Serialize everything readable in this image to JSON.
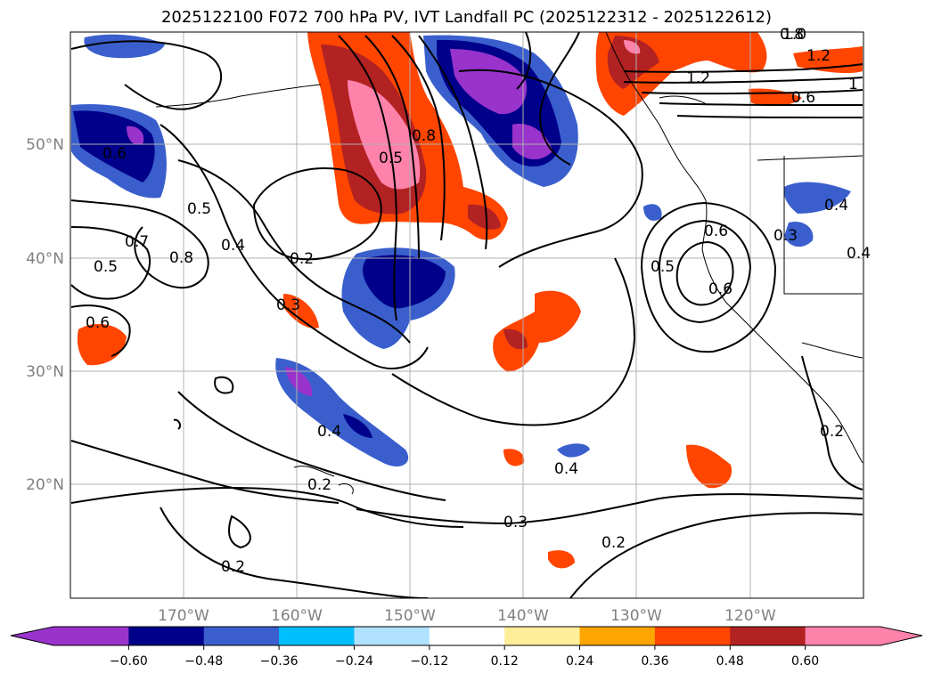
{
  "title": "2025122100 F072 700 hPa PV, IVT Landfall PC (2025122312 - 2025122612)",
  "map": {
    "lat_labels": [
      "50°N",
      "40°N",
      "30°N",
      "20°N"
    ],
    "lon_labels": [
      "170°W",
      "160°W",
      "150°W",
      "140°W",
      "130°W",
      "120°W"
    ],
    "contour_labels": [
      "0.6",
      "0.5",
      "0.7",
      "0.8",
      "0.5",
      "0.4",
      "0.6",
      "0.2",
      "0.3",
      "0.5",
      "0.8",
      "0.8",
      "1.2",
      "1.0",
      "1.2",
      "0.6",
      "1",
      "0.6",
      "0.5",
      "0.6",
      "0.4",
      "0.3",
      "0.4",
      "0.4",
      "0.2",
      "0.4",
      "0.3",
      "0.2",
      "0.2",
      "0.2"
    ]
  },
  "colorbar": {
    "colors": [
      "#9933cc",
      "#00008b",
      "#3a5fcd",
      "#00bfff",
      "#b0e2ff",
      "#ffffff",
      "#ffee99",
      "#ffa500",
      "#ff4500",
      "#b22222",
      "#ff82ab"
    ],
    "tick_labels": [
      "−0.60",
      "−0.48",
      "−0.36",
      "−0.24",
      "−0.12",
      "0.12",
      "0.24",
      "0.36",
      "0.48",
      "0.60"
    ]
  }
}
